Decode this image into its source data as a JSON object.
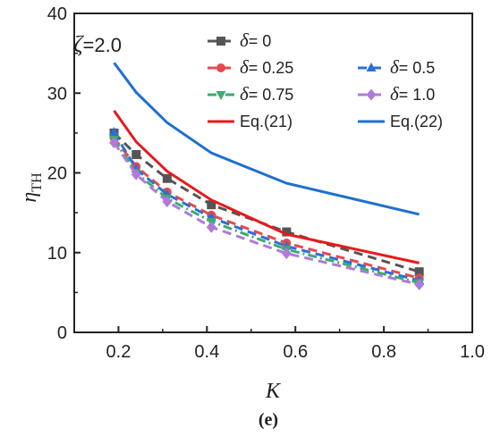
{
  "chart_data": {
    "type": "line",
    "title": "",
    "xlabel": "K",
    "ylabel_main": "η",
    "ylabel_sub": "TH",
    "xlim": [
      0.1,
      1.0
    ],
    "ylim": [
      0,
      40
    ],
    "xticks": [
      "0.2",
      "0.4",
      "0.6",
      "0.8",
      "1.0"
    ],
    "xtick_values": [
      0.2,
      0.4,
      0.6,
      0.8,
      1.0
    ],
    "yticks": [
      "0",
      "10",
      "20",
      "30",
      "40"
    ],
    "ytick_values": [
      0,
      10,
      20,
      30,
      40
    ],
    "grid": false,
    "legend_position": "top-right",
    "annotation_zeta_symbol": "ζ",
    "annotation_zeta_value": "=2.0",
    "panel_label": "(e)",
    "series": [
      {
        "name_symbol": "δ",
        "name_value": "= 0",
        "color": "#555555",
        "dash": "dash",
        "marker": "square",
        "x": [
          0.19,
          0.24,
          0.31,
          0.41,
          0.58,
          0.88
        ],
        "y": [
          25.0,
          22.3,
          19.3,
          16.0,
          12.6,
          7.6
        ]
      },
      {
        "name_symbol": "δ",
        "name_value": "= 0.25",
        "color": "#e8484d",
        "dash": "dash",
        "marker": "circle",
        "x": [
          0.19,
          0.24,
          0.31,
          0.41,
          0.58,
          0.88
        ],
        "y": [
          24.4,
          20.8,
          17.6,
          14.7,
          11.2,
          6.8
        ]
      },
      {
        "name_symbol": "δ",
        "name_value": "= 0.5",
        "color": "#2d6fd6",
        "dash": "dash",
        "marker": "triangle",
        "x": [
          0.19,
          0.24,
          0.31,
          0.41,
          0.58,
          0.88
        ],
        "y": [
          25.1,
          20.5,
          17.3,
          14.4,
          10.8,
          6.5
        ]
      },
      {
        "name_symbol": "δ",
        "name_value": "= 0.75",
        "color": "#3cab6e",
        "dash": "dashdot",
        "marker": "triangle-down",
        "x": [
          0.19,
          0.24,
          0.31,
          0.41,
          0.58,
          0.88
        ],
        "y": [
          24.2,
          20.0,
          16.8,
          13.9,
          10.4,
          6.2
        ]
      },
      {
        "name_symbol": "δ",
        "name_value": "= 1.0",
        "color": "#b07ad9",
        "dash": "dash",
        "marker": "diamond",
        "x": [
          0.19,
          0.24,
          0.31,
          0.41,
          0.58,
          0.88
        ],
        "y": [
          23.8,
          19.8,
          16.4,
          13.2,
          9.9,
          6.0
        ]
      },
      {
        "name": "Eq.(21)",
        "color": "#e8191b",
        "dash": "solid",
        "marker": "none",
        "x": [
          0.19,
          0.24,
          0.31,
          0.41,
          0.58,
          0.88
        ],
        "y": [
          27.8,
          23.9,
          20.2,
          16.6,
          12.3,
          8.7
        ]
      },
      {
        "name": "Eq.(22)",
        "color": "#1f6fd0",
        "dash": "solid",
        "marker": "none",
        "x": [
          0.19,
          0.24,
          0.31,
          0.41,
          0.58,
          0.88
        ],
        "y": [
          33.8,
          30.1,
          26.3,
          22.5,
          18.7,
          14.8
        ]
      }
    ]
  }
}
